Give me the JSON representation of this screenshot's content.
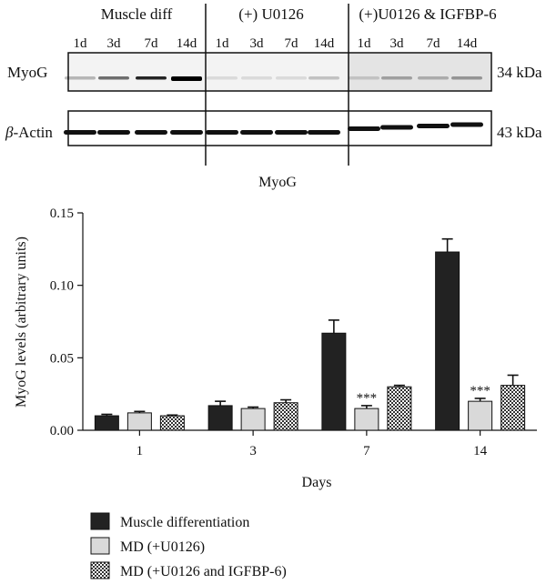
{
  "blot": {
    "groups": [
      "Muscle diff",
      "(+) U0126",
      "(+)U0126 & IGFBP-6"
    ],
    "lanes": [
      "1d",
      "3d",
      "7d",
      "14d"
    ],
    "rows": [
      {
        "label_greek": "β",
        "label": "MyoG",
        "label_suffix": "",
        "kda": "34 kDa"
      },
      {
        "label_greek": "β",
        "label": "-Actin",
        "label_suffix": "",
        "kda": "43 kDa"
      }
    ]
  },
  "chart_data": {
    "type": "bar",
    "title": "MyoG",
    "xlabel": "Days",
    "ylabel": "MyoG levels (arbitrary units)",
    "categories": [
      "1",
      "3",
      "7",
      "14"
    ],
    "ylim": [
      0,
      0.15
    ],
    "yticks": [
      "0.00",
      "0.05",
      "0.10",
      "0.15"
    ],
    "series": [
      {
        "name": "Muscle differentiation",
        "fill": "#222222",
        "values": [
          0.01,
          0.017,
          0.067,
          0.123
        ],
        "errors": [
          0.001,
          0.003,
          0.009,
          0.009
        ]
      },
      {
        "name": "MD (+U0126)",
        "fill": "#d9d9d9",
        "values": [
          0.012,
          0.015,
          0.015,
          0.02
        ],
        "errors": [
          0.001,
          0.001,
          0.002,
          0.002
        ]
      },
      {
        "name": "MD (+U0126 and IGFBP-6)",
        "fill": "pattern",
        "values": [
          0.01,
          0.019,
          0.03,
          0.031
        ],
        "errors": [
          0.0005,
          0.002,
          0.001,
          0.007
        ]
      }
    ],
    "annotations": [
      {
        "category": "7",
        "series": 1,
        "text": "***"
      },
      {
        "category": "14",
        "series": 1,
        "text": "***"
      }
    ],
    "legend": "bottom-left"
  }
}
